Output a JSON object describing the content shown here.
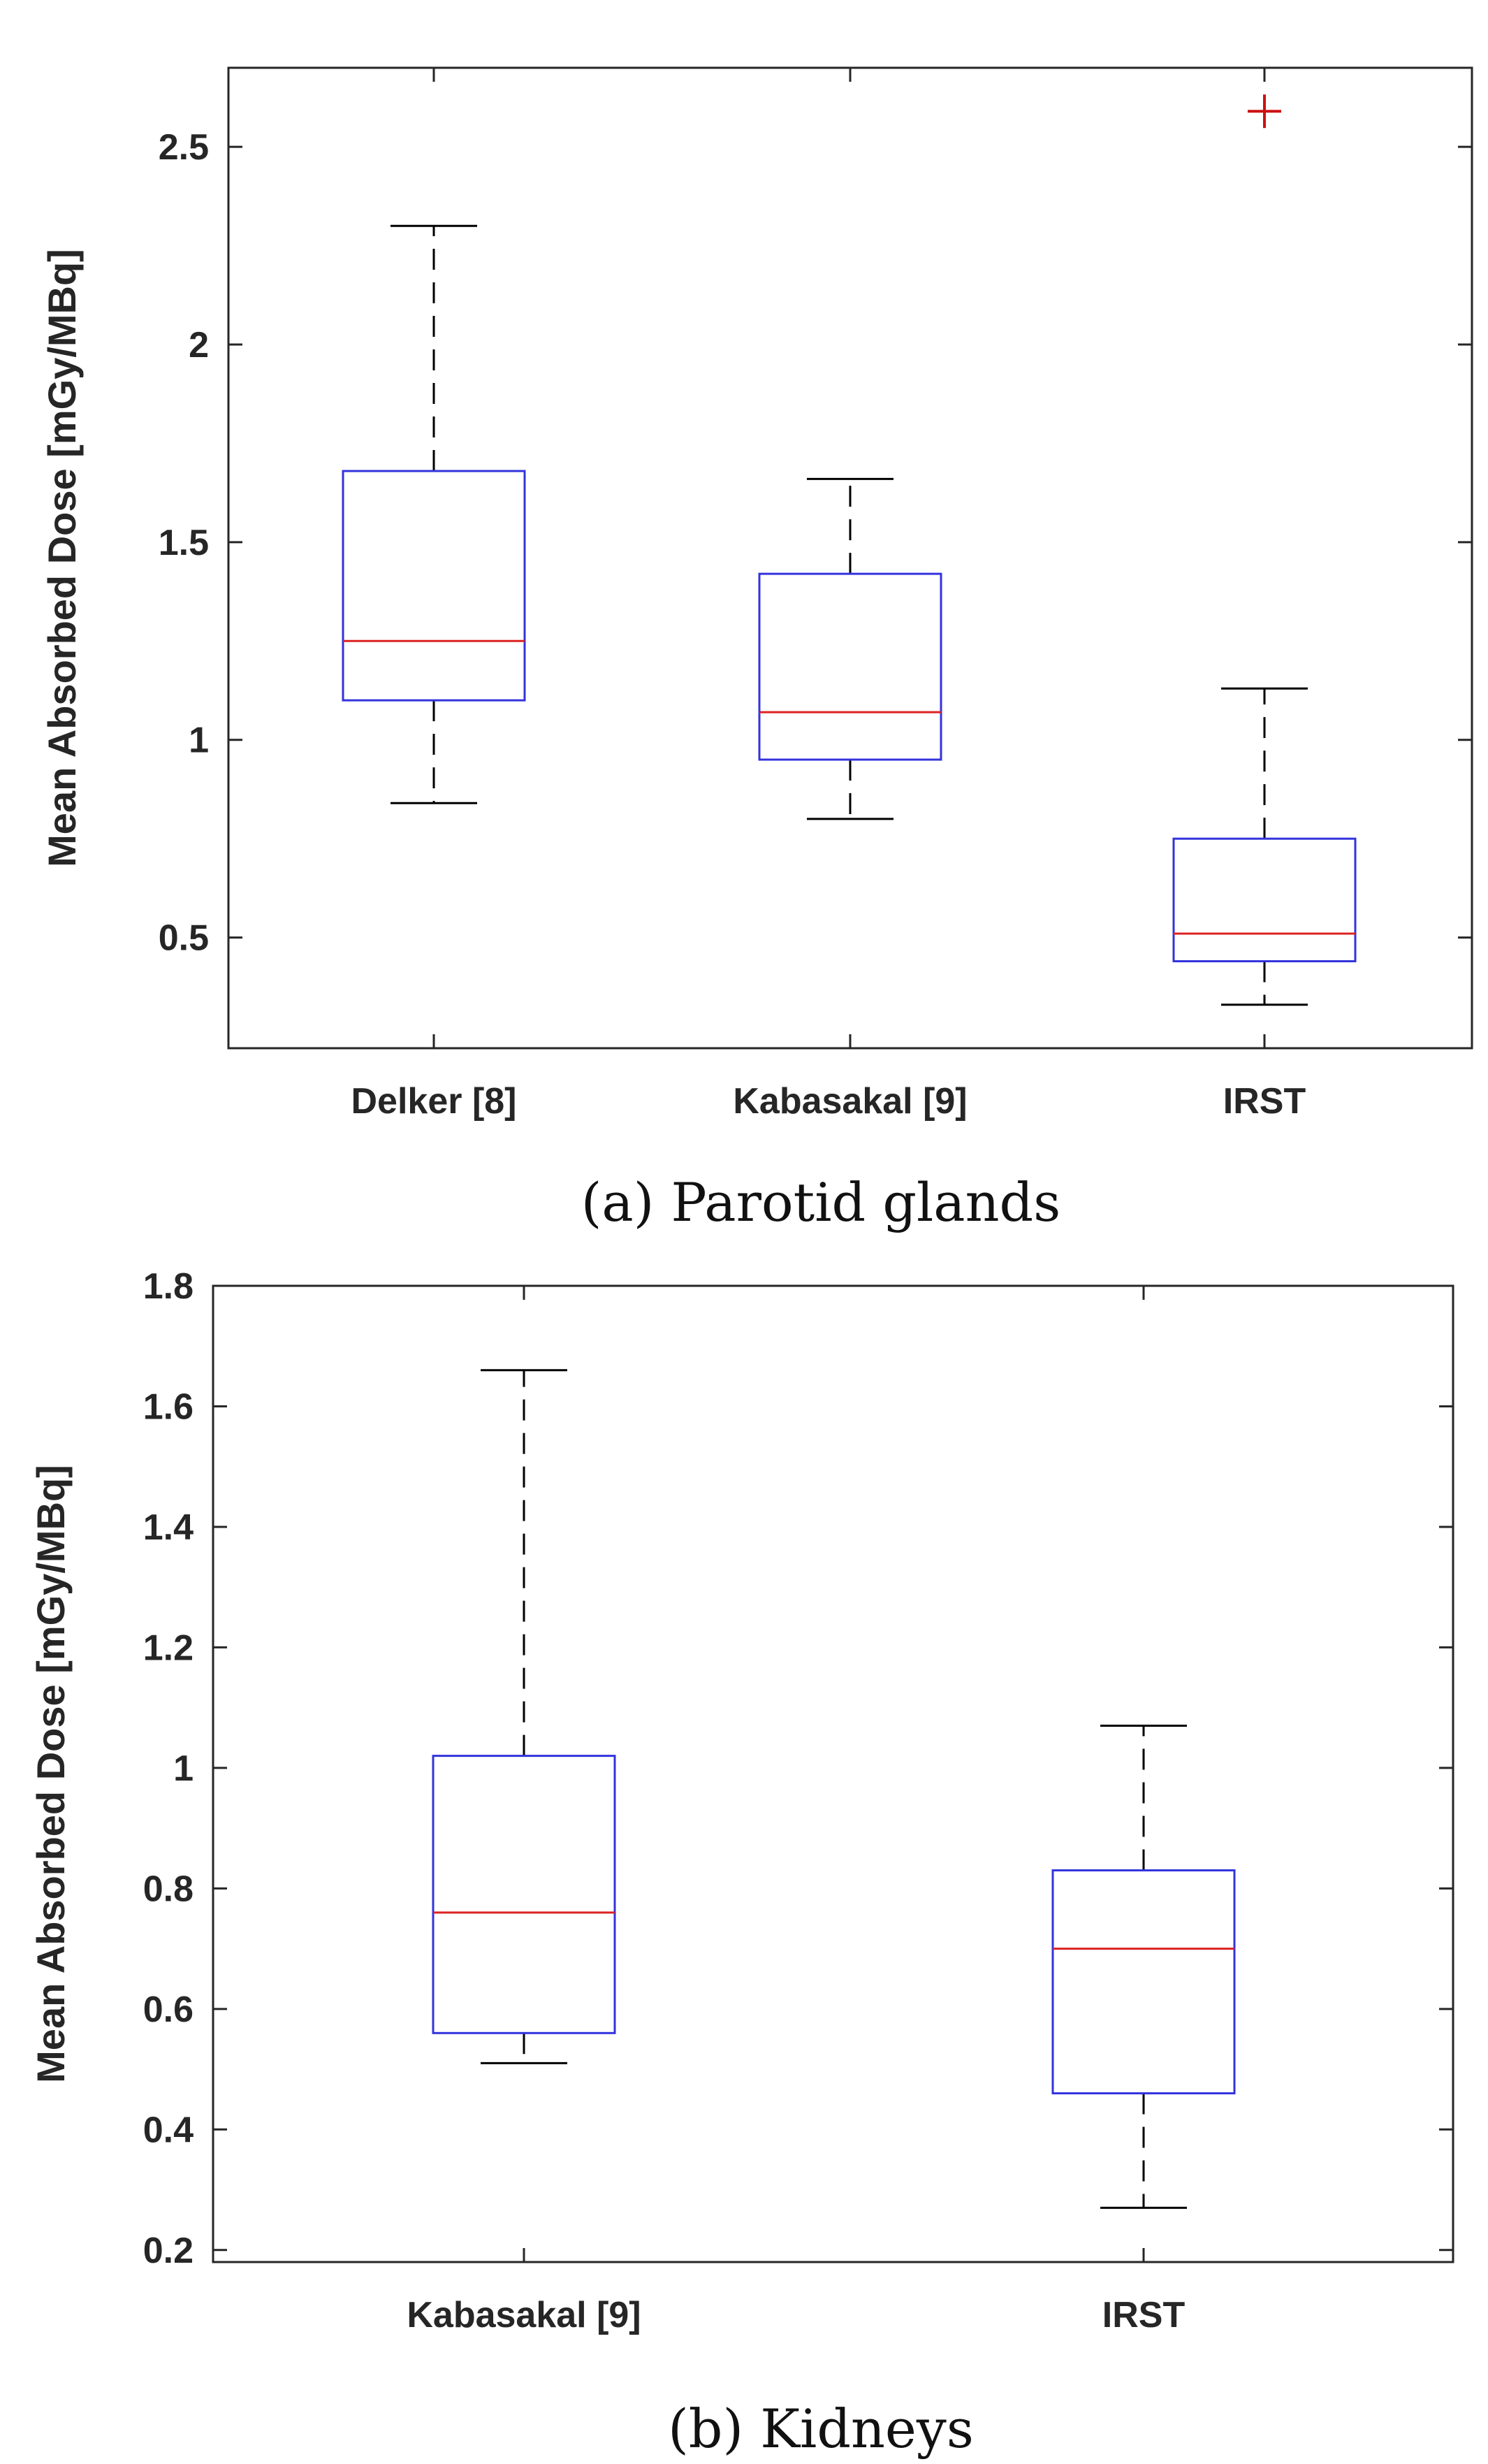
{
  "colors": {
    "box": "#3333dd",
    "median": "#dd2222",
    "whisker": "#000000",
    "outlier": "#cc1111",
    "axis": "#262626"
  },
  "chart_data": [
    {
      "type": "box",
      "caption": "(a) Parotid glands",
      "ylabel": "Mean Absorbed Dose [mGy/MBq]",
      "xlabel": "",
      "ylim": [
        0.22,
        2.7
      ],
      "yticks": [
        0.5,
        1,
        1.5,
        2,
        2.5
      ],
      "ytick_labels": [
        "0.5",
        "1",
        "1.5",
        "2",
        "2.5"
      ],
      "categories": [
        "Delker [8]",
        "Kabasakal [9]",
        "IRST"
      ],
      "boxes": [
        {
          "whisker_low": 0.84,
          "q1": 1.1,
          "median": 1.25,
          "q3": 1.68,
          "whisker_high": 2.3,
          "outliers": []
        },
        {
          "whisker_low": 0.8,
          "q1": 0.95,
          "median": 1.07,
          "q3": 1.42,
          "whisker_high": 1.66,
          "outliers": []
        },
        {
          "whisker_low": 0.33,
          "q1": 0.44,
          "median": 0.51,
          "q3": 0.75,
          "whisker_high": 1.13,
          "outliers": [
            2.59
          ]
        }
      ]
    },
    {
      "type": "box",
      "caption": "(b) Kidneys",
      "ylabel": "Mean Absorbed Dose [mGy/MBq]",
      "xlabel": "",
      "ylim": [
        0.18,
        1.8
      ],
      "yticks": [
        0.2,
        0.4,
        0.6,
        0.8,
        1,
        1.2,
        1.4,
        1.6,
        1.8
      ],
      "ytick_labels": [
        "0.2",
        "0.4",
        "0.6",
        "0.8",
        "1",
        "1.2",
        "1.4",
        "1.6",
        "1.8"
      ],
      "categories": [
        "Kabasakal [9]",
        "IRST"
      ],
      "boxes": [
        {
          "whisker_low": 0.51,
          "q1": 0.56,
          "median": 0.76,
          "q3": 1.02,
          "whisker_high": 1.66,
          "outliers": []
        },
        {
          "whisker_low": 0.27,
          "q1": 0.46,
          "median": 0.7,
          "q3": 0.83,
          "whisker_high": 1.07,
          "outliers": []
        }
      ]
    }
  ]
}
